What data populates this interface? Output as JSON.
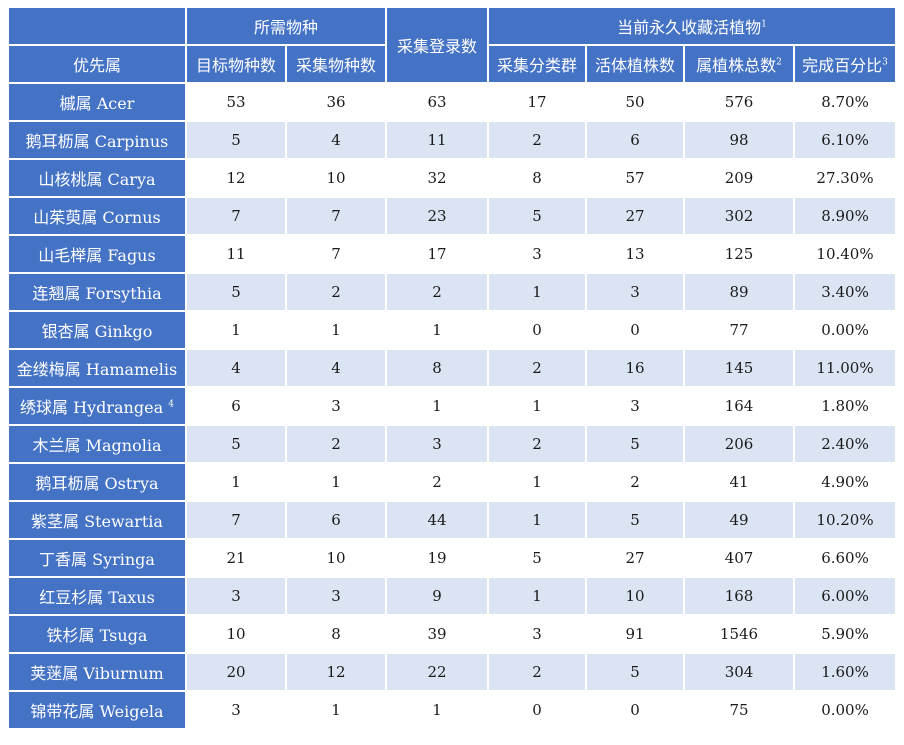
{
  "header": {
    "group_required": "所需物种",
    "group_collection": "当前永久收藏活植物",
    "group_collection_note": "1",
    "priority_genus": "优先属",
    "target_species": "目标物种数",
    "collected_species": "采集物种数",
    "accessions": "采集登录数",
    "collected_taxa": "采集分类群",
    "living_plants": "活体植株数",
    "genus_total": "属植株总数",
    "genus_total_note": "2",
    "completion": "完成百分比",
    "completion_note": "3"
  },
  "rows": [
    {
      "genus": "槭属 Acer",
      "note": "",
      "target": "53",
      "collected": "36",
      "accessions": "63",
      "taxa": "17",
      "living": "50",
      "total": "576",
      "pct": "8.70%"
    },
    {
      "genus": "鹅耳枥属 Carpinus",
      "note": "",
      "target": "5",
      "collected": "4",
      "accessions": "11",
      "taxa": "2",
      "living": "6",
      "total": "98",
      "pct": "6.10%"
    },
    {
      "genus": "山核桃属 Carya",
      "note": "",
      "target": "12",
      "collected": "10",
      "accessions": "32",
      "taxa": "8",
      "living": "57",
      "total": "209",
      "pct": "27.30%"
    },
    {
      "genus": "山茱萸属 Cornus",
      "note": "",
      "target": "7",
      "collected": "7",
      "accessions": "23",
      "taxa": "5",
      "living": "27",
      "total": "302",
      "pct": "8.90%"
    },
    {
      "genus": "山毛榉属 Fagus",
      "note": "",
      "target": "11",
      "collected": "7",
      "accessions": "17",
      "taxa": "3",
      "living": "13",
      "total": "125",
      "pct": "10.40%"
    },
    {
      "genus": "连翘属 Forsythia",
      "note": "",
      "target": "5",
      "collected": "2",
      "accessions": "2",
      "taxa": "1",
      "living": "3",
      "total": "89",
      "pct": "3.40%"
    },
    {
      "genus": "银杏属 Ginkgo",
      "note": "",
      "target": "1",
      "collected": "1",
      "accessions": "1",
      "taxa": "0",
      "living": "0",
      "total": "77",
      "pct": "0.00%"
    },
    {
      "genus": "金缕梅属 Hamamelis",
      "note": "",
      "target": "4",
      "collected": "4",
      "accessions": "8",
      "taxa": "2",
      "living": "16",
      "total": "145",
      "pct": "11.00%"
    },
    {
      "genus": "绣球属 Hydrangea",
      "note": "4",
      "target": "6",
      "collected": "3",
      "accessions": "1",
      "taxa": "1",
      "living": "3",
      "total": "164",
      "pct": "1.80%"
    },
    {
      "genus": "木兰属 Magnolia",
      "note": "",
      "target": "5",
      "collected": "2",
      "accessions": "3",
      "taxa": "2",
      "living": "5",
      "total": "206",
      "pct": "2.40%"
    },
    {
      "genus": "鹅耳枥属 Ostrya",
      "note": "",
      "target": "1",
      "collected": "1",
      "accessions": "2",
      "taxa": "1",
      "living": "2",
      "total": "41",
      "pct": "4.90%"
    },
    {
      "genus": "紫茎属 Stewartia",
      "note": "",
      "target": "7",
      "collected": "6",
      "accessions": "44",
      "taxa": "1",
      "living": "5",
      "total": "49",
      "pct": "10.20%"
    },
    {
      "genus": "丁香属 Syringa",
      "note": "",
      "target": "21",
      "collected": "10",
      "accessions": "19",
      "taxa": "5",
      "living": "27",
      "total": "407",
      "pct": "6.60%"
    },
    {
      "genus": "红豆杉属 Taxus",
      "note": "",
      "target": "3",
      "collected": "3",
      "accessions": "9",
      "taxa": "1",
      "living": "10",
      "total": "168",
      "pct": "6.00%"
    },
    {
      "genus": "铁杉属 Tsuga",
      "note": "",
      "target": "10",
      "collected": "8",
      "accessions": "39",
      "taxa": "3",
      "living": "91",
      "total": "1546",
      "pct": "5.90%"
    },
    {
      "genus": "荚蒾属 Viburnum",
      "note": "",
      "target": "20",
      "collected": "12",
      "accessions": "22",
      "taxa": "2",
      "living": "5",
      "total": "304",
      "pct": "1.60%"
    },
    {
      "genus": "锦带花属 Weigela",
      "note": "",
      "target": "3",
      "collected": "1",
      "accessions": "1",
      "taxa": "0",
      "living": "0",
      "total": "75",
      "pct": "0.00%"
    }
  ]
}
